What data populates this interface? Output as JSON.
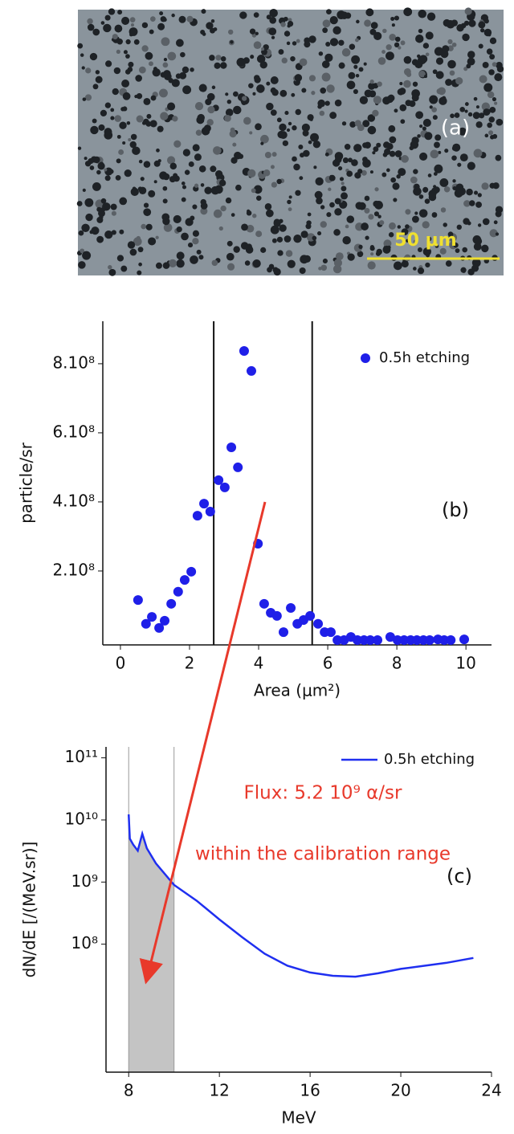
{
  "image": {
    "label": "(a)",
    "scale_bar": "50 μm"
  },
  "chart_data": [
    {
      "type": "scatter",
      "xlabel": "Area (μm²)",
      "ylabel": "particle/sr",
      "annotation": "(b)",
      "x": [
        0.51,
        0.74,
        0.91,
        1.12,
        1.28,
        1.47,
        1.67,
        1.86,
        2.05,
        2.23,
        2.42,
        2.6,
        2.84,
        3.02,
        3.21,
        3.4,
        3.58,
        3.79,
        3.98,
        4.16,
        4.35,
        4.53,
        4.72,
        4.93,
        5.12,
        5.3,
        5.49,
        5.72,
        5.91,
        6.09,
        6.28,
        6.47,
        6.67,
        6.86,
        7.05,
        7.23,
        7.44,
        7.81,
        8.02,
        8.21,
        8.4,
        8.58,
        8.77,
        8.95,
        9.19,
        9.37,
        9.56,
        9.95
      ],
      "series": [
        {
          "name": "0.5h etching",
          "color": "#1f1fe8",
          "values": [
            116000000,
            47000000,
            67000000,
            35000000,
            56000000,
            105000000,
            140000000,
            174000000,
            198000000,
            360000000,
            395000000,
            372000000,
            463000000,
            442000000,
            558000000,
            500000000,
            837000000,
            779000000,
            279000000,
            105000000,
            79000000,
            70000000,
            23000000,
            93000000,
            47000000,
            58000000,
            70000000,
            47000000,
            23000000,
            23000000,
            0,
            0,
            9000000,
            0,
            0,
            0,
            0,
            9000000,
            0,
            0,
            0,
            0,
            0,
            0,
            2000000,
            0,
            0,
            2000000
          ]
        }
      ],
      "xlim": [
        -0.51,
        10.74
      ],
      "xticks": [
        0,
        2,
        4,
        6,
        8,
        10
      ],
      "ylim": [
        -14000000,
        923000000
      ],
      "yticks": [
        {
          "value": 200000000,
          "label": "2.10⁸"
        },
        {
          "value": 400000000,
          "label": "4.10⁸"
        },
        {
          "value": 600000000,
          "label": "6.10⁸"
        },
        {
          "value": 800000000,
          "label": "8.10⁸"
        }
      ],
      "vlines": [
        2.7,
        5.55
      ],
      "legend": "upper right"
    },
    {
      "type": "line",
      "xlabel": "MeV",
      "ylabel": "dN/dE [/(MeV.sr)]",
      "annotation": "(c)",
      "texts": [
        "Flux: 5.2 10⁹ α/sr",
        "within the calibration range"
      ],
      "text_color": "#e8392b",
      "x": [
        8,
        8.05,
        8.2,
        8.4,
        8.6,
        8.8,
        9.2,
        10,
        11,
        12,
        13,
        14,
        15,
        16,
        17,
        18,
        19,
        20,
        22,
        23.2
      ],
      "series": [
        {
          "name": "0.5h etching",
          "color": "#1f2ff0",
          "values": [
            12300000000,
            5000000000,
            4000000000,
            3200000000,
            6000000000,
            3500000000,
            2000000000,
            900000000,
            500000000,
            250000000,
            130000000,
            70000000,
            45000000,
            35000000,
            31000000,
            30000000,
            34000000,
            40000000,
            50000000,
            60000000
          ]
        }
      ],
      "xlim": [
        7,
        24
      ],
      "xticks": [
        8,
        12,
        16,
        20,
        24
      ],
      "ylim": [
        870000,
        150000000000
      ],
      "log_y": true,
      "yticks": [
        {
          "value": 100000000,
          "label": "10⁸"
        },
        {
          "value": 1000000000,
          "label": "10⁹"
        },
        {
          "value": 10000000000,
          "label": "10¹⁰"
        },
        {
          "value": 100000000000,
          "label": "10¹¹"
        }
      ],
      "shade": [
        8,
        10
      ],
      "legend": "upper right"
    }
  ]
}
